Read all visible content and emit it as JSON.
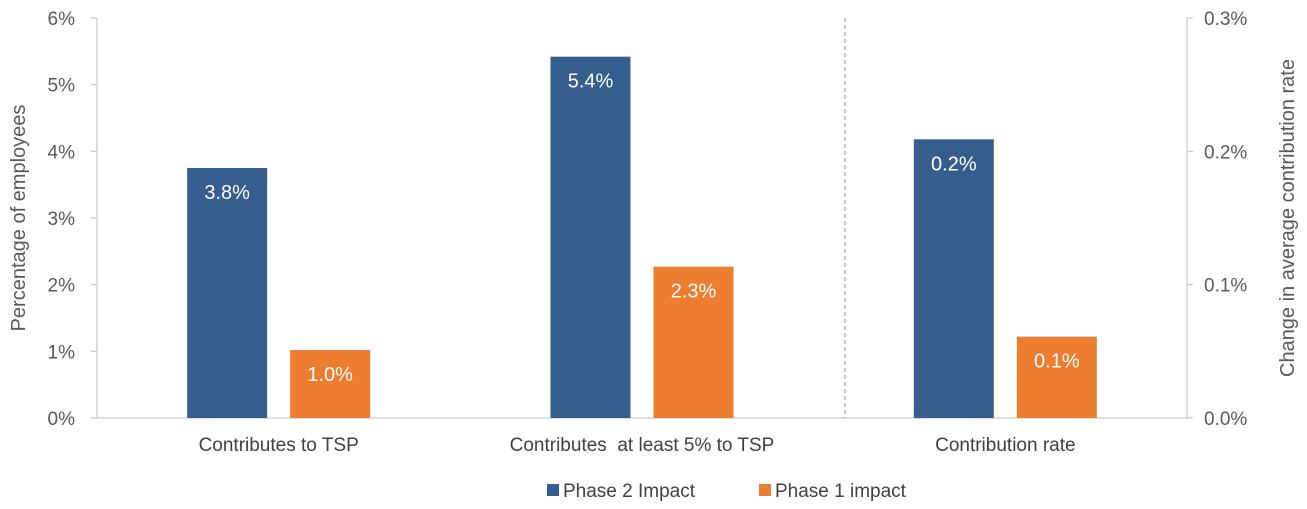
{
  "chart_data": {
    "type": "bar",
    "categories": [
      "Contributes to TSP",
      "Contributes  at least 5% to TSP",
      "Contribution rate"
    ],
    "series": [
      {
        "name": "Phase 2 Impact",
        "color": "#355e8e",
        "values": [
          3.75,
          5.42,
          0.209
        ],
        "labels": [
          "3.8%",
          "5.4%",
          "0.2%"
        ]
      },
      {
        "name": "Phase 1 impact",
        "color": "#ed7d31",
        "values": [
          1.02,
          2.27,
          0.061
        ],
        "labels": [
          "1.0%",
          "2.3%",
          "0.1%"
        ]
      }
    ],
    "axis_assignment": [
      "left",
      "left",
      "right"
    ],
    "left_axis": {
      "label": "Percentage of employees",
      "ylim": [
        0,
        6
      ],
      "ticks": [
        "0%",
        "1%",
        "2%",
        "3%",
        "4%",
        "5%",
        "6%"
      ]
    },
    "right_axis": {
      "label": "Change in average contribution rate",
      "ylim": [
        0,
        0.3
      ],
      "ticks": [
        "0.0%",
        "0.1%",
        "0.2%",
        "0.3%"
      ]
    },
    "divider": "between-categories-2-and-3",
    "grid": false,
    "legend_position": "bottom-center"
  }
}
